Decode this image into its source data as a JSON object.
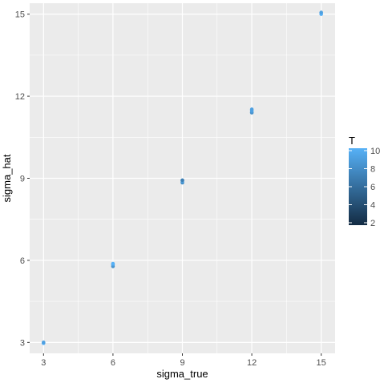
{
  "chart_data": {
    "type": "scatter",
    "xlabel": "sigma_true",
    "ylabel": "sigma_hat",
    "xlim": [
      2.4,
      15.6
    ],
    "ylim": [
      2.6,
      15.4
    ],
    "x_ticks": [
      3,
      6,
      9,
      12,
      15
    ],
    "y_ticks": [
      3,
      6,
      9,
      12,
      15
    ],
    "x_tick_labels": [
      "3",
      "6",
      "9",
      "12",
      "15"
    ],
    "y_tick_labels": [
      "3",
      "6",
      "9",
      "12",
      "15"
    ],
    "grid": true,
    "panel_background": "#ebebeb",
    "grid_color": "#ffffff",
    "legend": {
      "title": "T",
      "type": "colorbar",
      "range": [
        2,
        10
      ],
      "ticks": [
        2,
        4,
        6,
        8,
        10
      ],
      "tick_labels": [
        "2",
        "4",
        "6",
        "8",
        "10"
      ],
      "color_low": "#132b43",
      "color_high": "#56b1f7",
      "placement": "right"
    },
    "points": [
      {
        "x": 3,
        "y": 2.97,
        "T": 10
      },
      {
        "x": 3,
        "y": 3.0,
        "T": 9
      },
      {
        "x": 6,
        "y": 5.78,
        "T": 8
      },
      {
        "x": 6,
        "y": 5.84,
        "T": 9
      },
      {
        "x": 6,
        "y": 5.88,
        "T": 10
      },
      {
        "x": 9,
        "y": 8.84,
        "T": 8
      },
      {
        "x": 9,
        "y": 8.9,
        "T": 9
      },
      {
        "x": 9,
        "y": 8.93,
        "T": 7
      },
      {
        "x": 12,
        "y": 11.4,
        "T": 8
      },
      {
        "x": 12,
        "y": 11.46,
        "T": 9
      },
      {
        "x": 12,
        "y": 11.52,
        "T": 9
      },
      {
        "x": 15,
        "y": 15.0,
        "T": 10
      },
      {
        "x": 15,
        "y": 15.06,
        "T": 9
      }
    ]
  }
}
